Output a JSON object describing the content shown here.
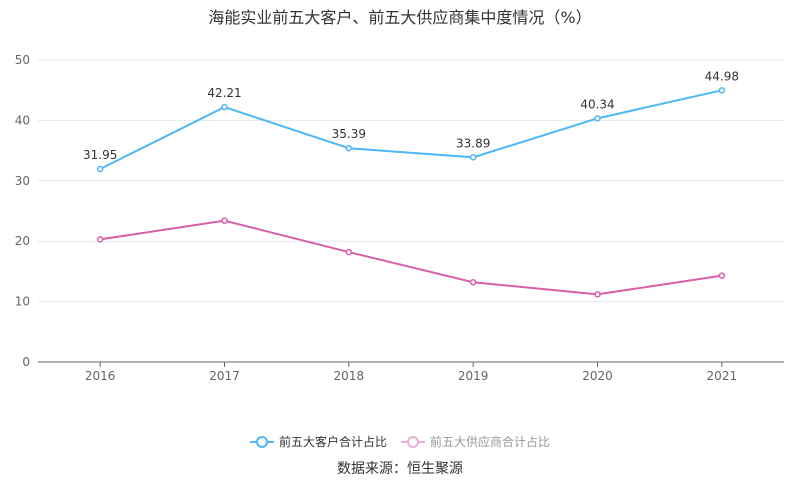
{
  "chart_data": {
    "type": "line",
    "title": "海能实业前五大客户、前五大供应商集中度情况（%）",
    "categories": [
      "2016",
      "2017",
      "2018",
      "2019",
      "2020",
      "2021"
    ],
    "ylim": [
      0,
      50
    ],
    "yticks": [
      0,
      10,
      20,
      30,
      40,
      50
    ],
    "grid": true,
    "legend": "bottom",
    "series": [
      {
        "name": "前五大客户合计占比",
        "color": "#4db8f5",
        "values": [
          31.95,
          42.21,
          35.39,
          33.89,
          40.34,
          44.98
        ],
        "labels": [
          "31.95",
          "42.21",
          "35.39",
          "33.89",
          "40.34",
          "44.98"
        ]
      },
      {
        "name": "前五大供应商合计占比",
        "color": "#d95fa8",
        "legend_color": "#ebaed2",
        "values": [
          20.3,
          23.4,
          18.2,
          13.2,
          11.2,
          14.3
        ]
      }
    ]
  },
  "source": "数据来源：恒生聚源"
}
